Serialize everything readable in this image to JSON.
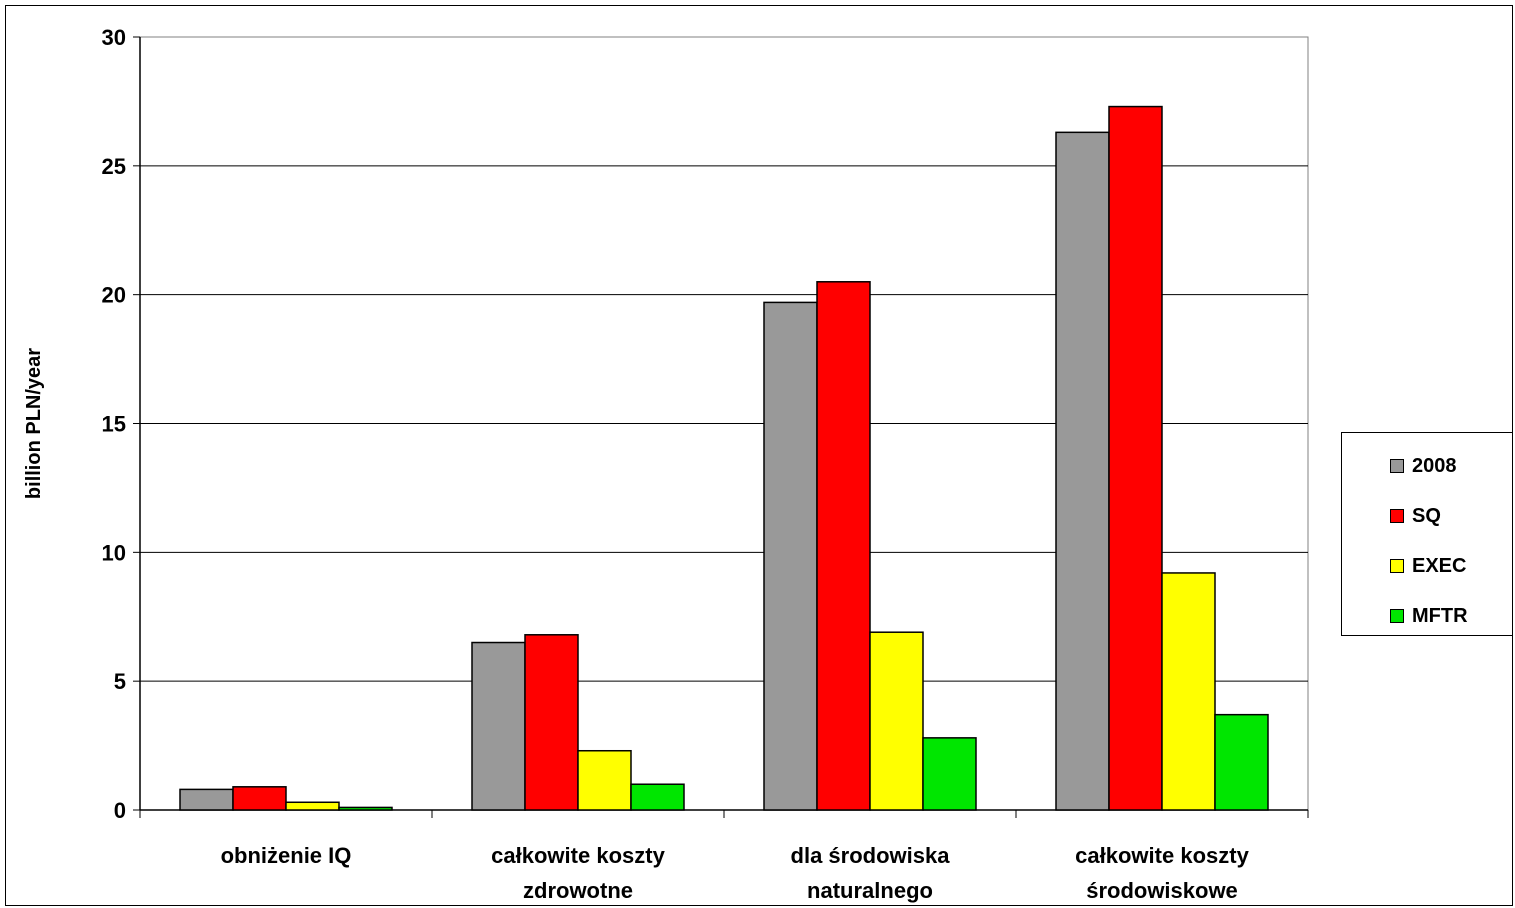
{
  "chart_data": {
    "type": "bar",
    "title": "",
    "xlabel": "",
    "ylabel": "billion PLN/year",
    "ylim": [
      0,
      30
    ],
    "yticks": [
      "0",
      "5",
      "10",
      "15",
      "20",
      "25",
      "30"
    ],
    "grid": true,
    "legend_position": "right",
    "categories": [
      [
        "obniżenie IQ"
      ],
      [
        "całkowite koszty",
        "zdrowotne"
      ],
      [
        "dla środowiska",
        "naturalnego"
      ],
      [
        "całkowite koszty",
        "środowiskowe"
      ]
    ],
    "series": [
      {
        "name": "2008",
        "color": "#999999",
        "values": [
          0.8,
          6.5,
          19.7,
          26.3
        ]
      },
      {
        "name": "SQ",
        "color": "#ff0000",
        "values": [
          0.9,
          6.8,
          20.5,
          27.3
        ]
      },
      {
        "name": "EXEC",
        "color": "#ffff00",
        "values": [
          0.3,
          2.3,
          6.9,
          9.2
        ]
      },
      {
        "name": "MFTR",
        "color": "#00e600",
        "values": [
          0.1,
          1.0,
          2.8,
          3.7
        ]
      }
    ]
  }
}
